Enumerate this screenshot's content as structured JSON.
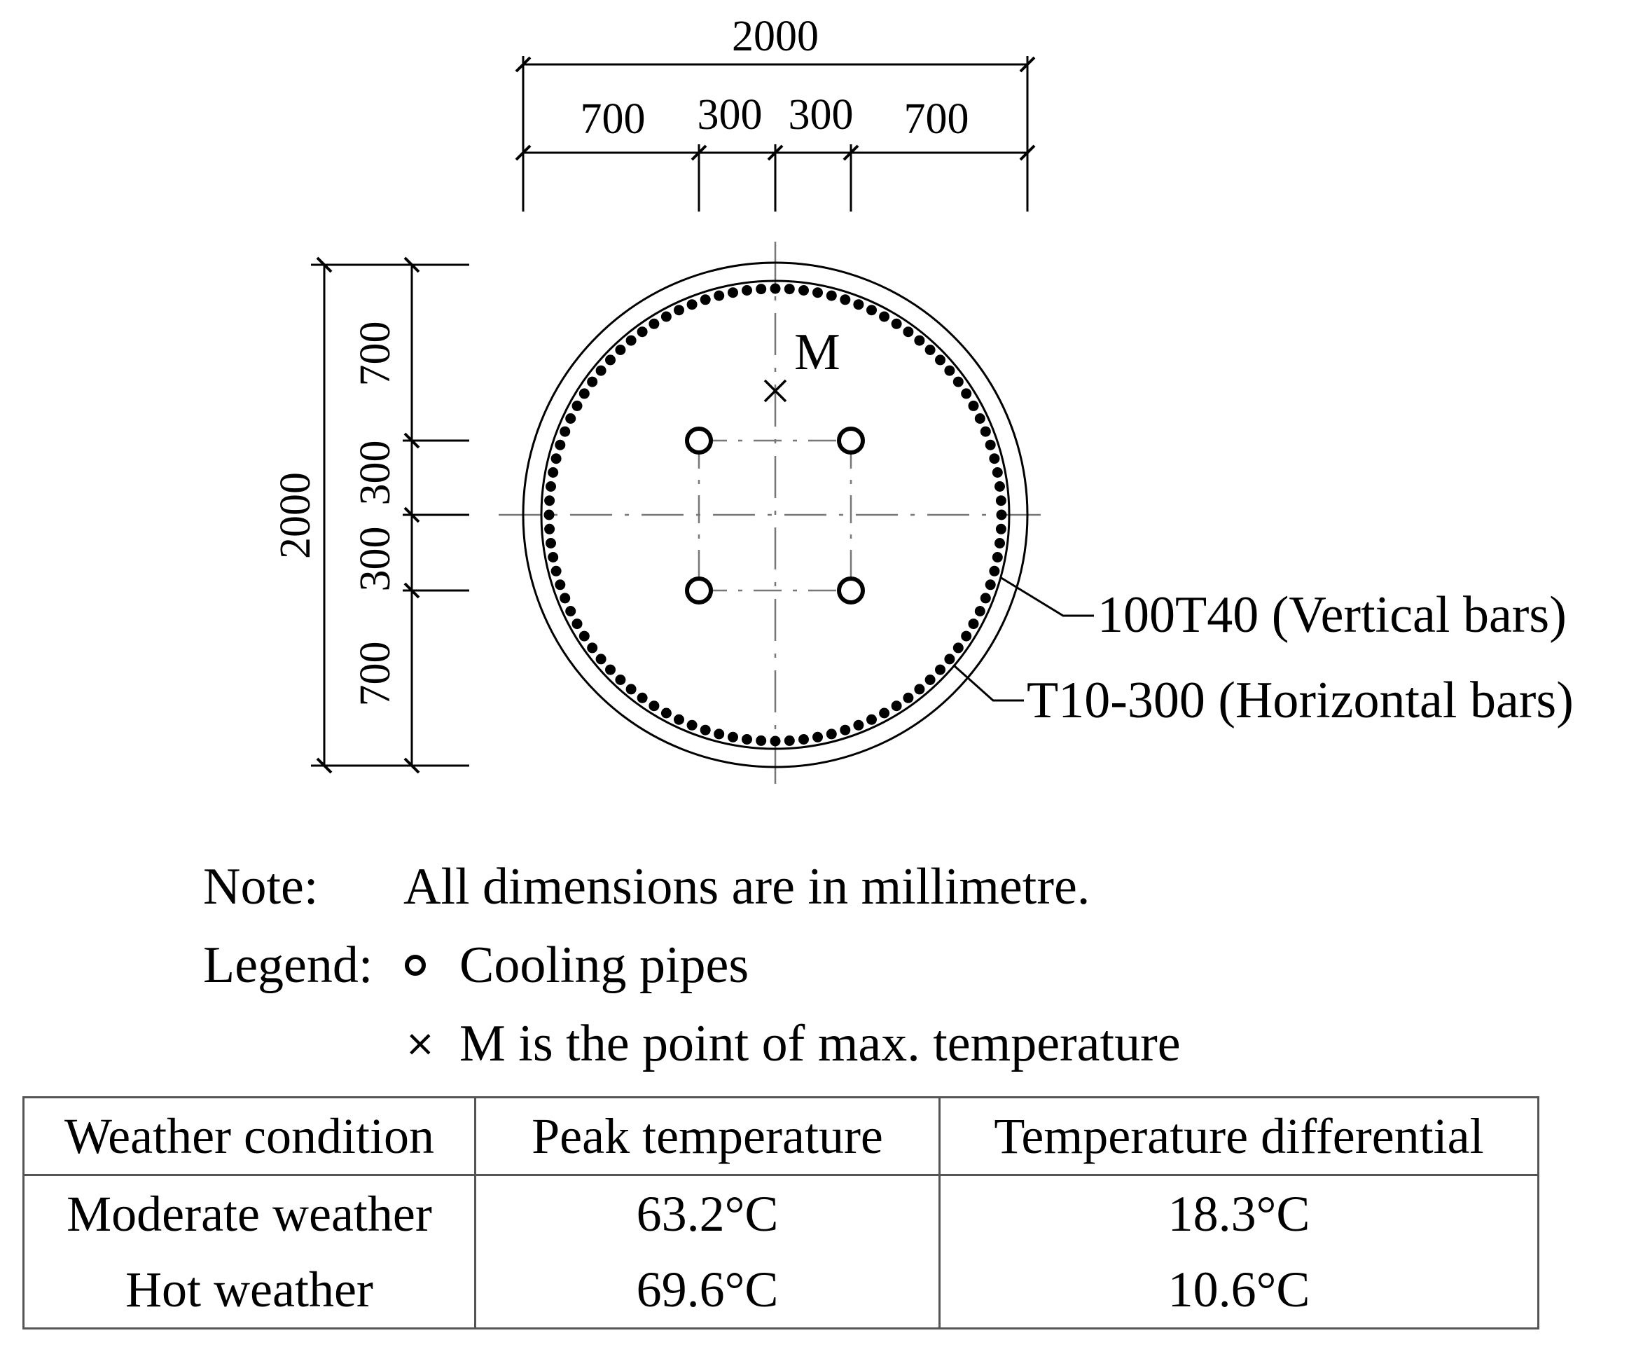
{
  "diagram": {
    "top_dims": {
      "total": "2000",
      "segments": [
        "700",
        "300",
        "300",
        "700"
      ]
    },
    "left_dims": {
      "total": "2000",
      "segments": [
        "700",
        "300",
        "300",
        "700"
      ]
    },
    "max_point_label": "M",
    "callouts": {
      "vertical_bars": "100T40 (Vertical bars)",
      "horizontal_bars": "T10-300 (Horizontal bars)"
    }
  },
  "notes": {
    "note_key": "Note:",
    "note_text": "All dimensions are in millimetre.",
    "legend_key": "Legend:",
    "legend_pipes": "Cooling pipes",
    "legend_max": "M is the point of max. temperature"
  },
  "table": {
    "headers": [
      "Weather condition",
      "Peak temperature",
      "Temperature differential"
    ],
    "rows": [
      [
        "Moderate weather",
        "63.2°C",
        "18.3°C"
      ],
      [
        "Hot weather",
        "69.6°C",
        "10.6°C"
      ]
    ]
  }
}
